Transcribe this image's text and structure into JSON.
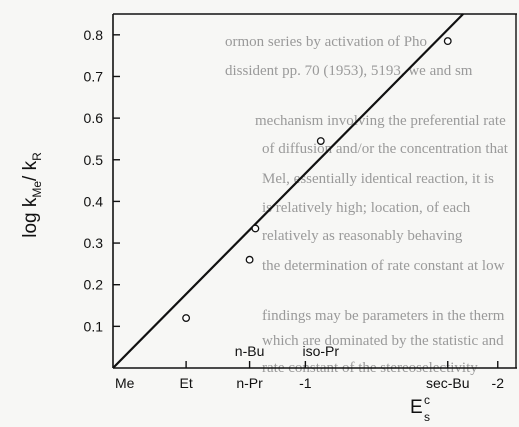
{
  "chart_data": {
    "type": "scatter",
    "title": "",
    "ylabel": {
      "main": "log k",
      "sub1": "Me",
      "mid": "/ k",
      "sub2": "R"
    },
    "xlabel": {
      "main": "E",
      "sup": "c",
      "sub": "s"
    },
    "ylim": [
      0,
      0.85
    ],
    "xlim": [
      0,
      -2.1
    ],
    "y_ticks": [
      0.1,
      0.2,
      0.3,
      0.4,
      0.5,
      0.6,
      0.7,
      0.8
    ],
    "y_tick_labels": [
      "0.1",
      "0.2",
      "0.3",
      "0.4",
      "0.5",
      "0.6",
      "0.7",
      "0.8"
    ],
    "x_categories": [
      {
        "label": "Me",
        "x": 0.0
      },
      {
        "label": "Et",
        "x": -0.38
      },
      {
        "label": "n-Pr",
        "x": -0.71
      },
      {
        "label": "-1",
        "x": -1.0
      },
      {
        "label": "sec-Bu",
        "x": -1.74
      },
      {
        "label": "-2",
        "x": -2.0
      }
    ],
    "annotations": [
      {
        "text": "n-Bu",
        "x": -0.71
      },
      {
        "text": "iso-Pr",
        "x": -1.08
      }
    ],
    "points": [
      {
        "x": -0.38,
        "y": 0.12
      },
      {
        "x": -0.71,
        "y": 0.26
      },
      {
        "x": -0.74,
        "y": 0.335
      },
      {
        "x": -1.08,
        "y": 0.545
      },
      {
        "x": -1.74,
        "y": 0.785
      }
    ],
    "fit_line": {
      "x": [
        0.0,
        -1.82
      ],
      "y": [
        0.0,
        0.85
      ]
    },
    "grid": false,
    "legend": "none"
  },
  "background_text": [
    "ormon series by activation of Pho",
    "dissident pp. 70 (1953), 5193, we and sm",
    "mechanism involving the preferential rate",
    "of diffusion and/or the concentration that",
    "Mel, essentially identical reaction, it is",
    "is relatively high; location, of each",
    "relatively as reasonably behaving",
    "the determination of rate constant at low",
    "findings may be parameters in the therm",
    "which are dominated by the statistic and",
    "rate constant of the stereoselectivity"
  ]
}
